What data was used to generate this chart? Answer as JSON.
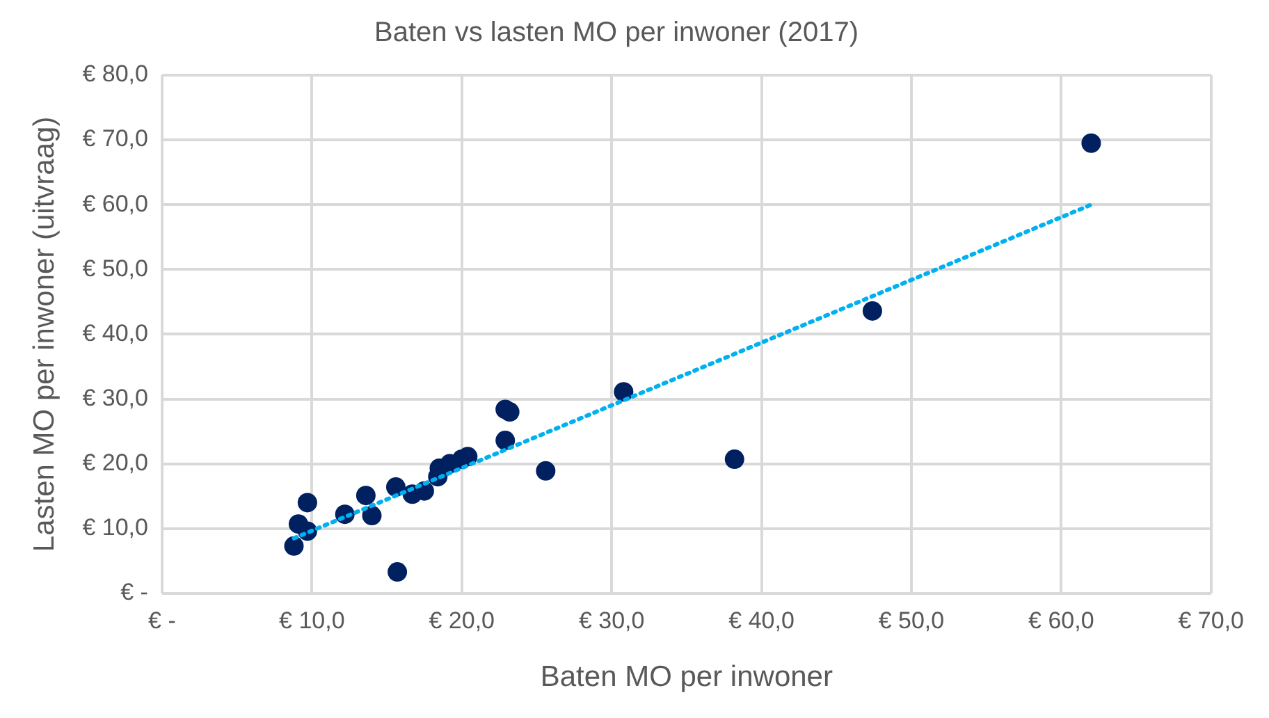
{
  "chart_data": {
    "type": "scatter",
    "title": "Baten vs lasten MO per inwoner (2017)",
    "xlabel": "Baten MO per inwoner",
    "ylabel": "Lasten MO per inwoner (uitvraag)",
    "series": [
      {
        "color": "#002060",
        "marker": "circle",
        "x": [
          62.0,
          47.4,
          38.2,
          30.8,
          25.6,
          22.9,
          23.2,
          22.9,
          20.4,
          20.0,
          19.2,
          18.5,
          18.4,
          17.5,
          16.7,
          15.6,
          13.6,
          14.0,
          12.2,
          9.7,
          9.1,
          9.7,
          8.8,
          15.7
        ],
        "values": [
          69.5,
          43.6,
          20.7,
          31.1,
          18.9,
          28.4,
          28.0,
          23.6,
          21.1,
          20.7,
          20.0,
          19.3,
          18.0,
          15.8,
          15.3,
          16.4,
          15.1,
          12.0,
          12.2,
          14.0,
          10.7,
          9.6,
          7.3,
          3.3
        ]
      },
      {
        "type": "line",
        "color": "#00b0f0",
        "line_style": "dotted",
        "marker": "none",
        "x": [
          8.8,
          62.0
        ],
        "values": [
          8.5,
          60.0
        ]
      }
    ],
    "xlim": [
      0,
      70
    ],
    "ylim": [
      0,
      80
    ],
    "xticks": [
      {
        "value": 0,
        "label": "€ -"
      },
      {
        "value": 10,
        "label": "€ 10,0"
      },
      {
        "value": 20,
        "label": "€ 20,0"
      },
      {
        "value": 30,
        "label": "€ 30,0"
      },
      {
        "value": 40,
        "label": "€ 40,0"
      },
      {
        "value": 50,
        "label": "€ 50,0"
      },
      {
        "value": 60,
        "label": "€ 60,0"
      },
      {
        "value": 70,
        "label": "€ 70,0"
      }
    ],
    "yticks": [
      {
        "value": 0,
        "label": "€ -"
      },
      {
        "value": 10,
        "label": "€ 10,0"
      },
      {
        "value": 20,
        "label": "€ 20,0"
      },
      {
        "value": 30,
        "label": "€ 30,0"
      },
      {
        "value": 40,
        "label": "€ 40,0"
      },
      {
        "value": 50,
        "label": "€ 50,0"
      },
      {
        "value": 60,
        "label": "€ 60,0"
      },
      {
        "value": 70,
        "label": "€ 70,0"
      },
      {
        "value": 80,
        "label": "€ 80,0"
      }
    ],
    "grid": true,
    "legend": false
  }
}
